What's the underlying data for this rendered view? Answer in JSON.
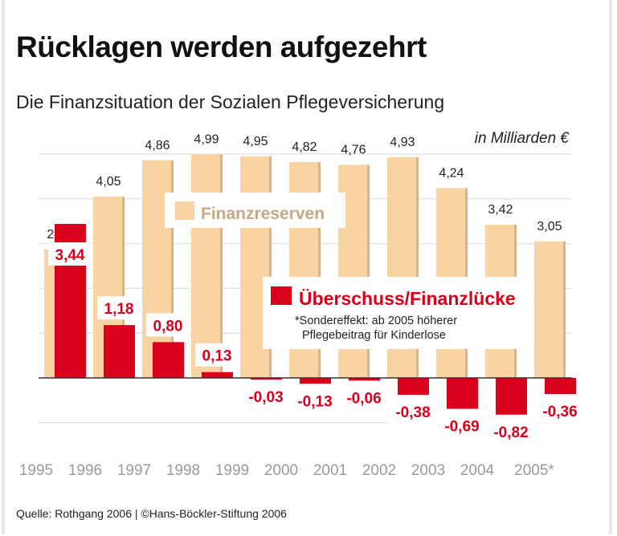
{
  "title": "Rücklagen werden aufgezehrt",
  "subtitle": "Die Finanzsituation der Sozialen Pflegeversicherung",
  "unit": "in Milliarden €",
  "source": "Quelle: Rothgang 2006 | ©Hans-Böckler-Stiftung 2006",
  "chart_data": {
    "type": "bar",
    "title": "Rücklagen werden aufgezehrt",
    "subtitle": "Die Finanzsituation der Sozialen Pflegeversicherung",
    "ylabel": "in Milliarden €",
    "categories": [
      "1995",
      "1996",
      "1997",
      "1998",
      "1999",
      "2000",
      "2001",
      "2002",
      "2003",
      "2004",
      "2005*"
    ],
    "ylim": [
      -1,
      5
    ],
    "grid": true,
    "series": [
      {
        "name": "Finanzreserven",
        "color": "#f9d3a2",
        "values": [
          2.87,
          4.05,
          4.86,
          4.99,
          4.95,
          4.82,
          4.76,
          4.93,
          4.24,
          3.42,
          3.05
        ],
        "labels": [
          "2,87",
          "4,05",
          "4,86",
          "4,99",
          "4,95",
          "4,82",
          "4,76",
          "4,93",
          "4,24",
          "3,42",
          "3,05"
        ]
      },
      {
        "name": "Überschuss/Finanzlücke",
        "color": "#d9001b",
        "values": [
          3.44,
          1.18,
          0.8,
          0.13,
          -0.03,
          -0.13,
          -0.06,
          -0.38,
          -0.69,
          -0.82,
          -0.36
        ],
        "labels": [
          "3,44",
          "1,18",
          "0,80",
          "0,13",
          "-0,03",
          "-0,13",
          "-0,06",
          "-0,38",
          "-0,69",
          "-0,82",
          "-0,36"
        ]
      }
    ],
    "annotation": [
      "*Sondereffekt: ab 2005 höherer",
      "Pflegebeitrag für Kinderlose"
    ]
  }
}
